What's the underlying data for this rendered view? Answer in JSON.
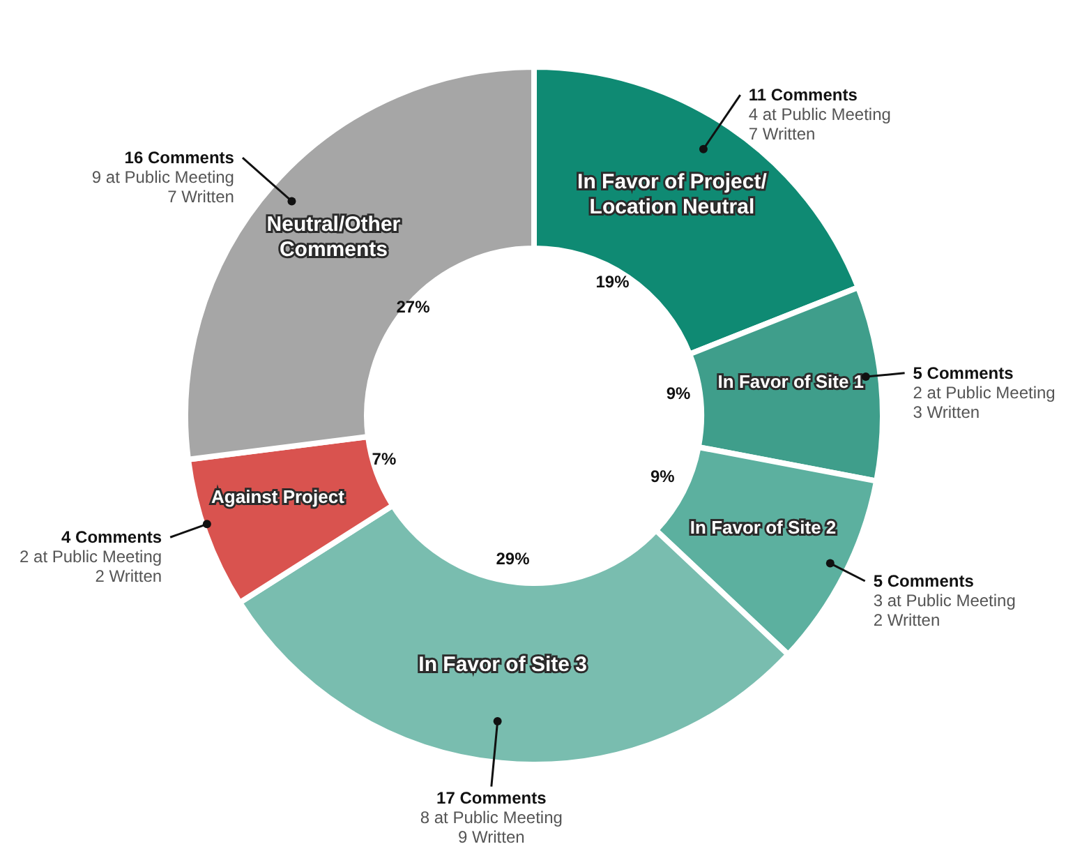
{
  "chart_data": {
    "type": "donut",
    "categories": [
      "In Favor of Project/ Location Neutral",
      "In Favor of Site 1",
      "In Favor of Site 2",
      "In Favor of Site 3",
      "Against Project",
      "Neutral/Other Comments"
    ],
    "values": [
      19,
      9,
      9,
      29,
      7,
      27
    ],
    "colors": [
      "#0f8a73",
      "#3f9e8b",
      "#5cb09f",
      "#79bdaf",
      "#d9534f",
      "#a6a6a6"
    ],
    "value_labels": [
      "19%",
      "9%",
      "9%",
      "29%",
      "7%",
      "27%"
    ],
    "annotations": [
      {
        "text": "11 Comments\n4 at Public Meeting\n7 Written",
        "x": "In Favor of Project/ Location Neutral"
      },
      {
        "text": "5 Comments\n2 at Public Meeting\n3 Written",
        "x": "In Favor of Site 1"
      },
      {
        "text": "5 Comments\n3 at Public Meeting\n2 Written",
        "x": "In Favor of Site 2"
      },
      {
        "text": "17 Comments\n8 at Public Meeting\n9 Written",
        "x": "In Favor of Site 3"
      },
      {
        "text": "4 Comments\n2 at Public Meeting\n2 Written",
        "x": "Against Project"
      },
      {
        "text": "16 Comments\n9 at Public Meeting\n7 Written",
        "x": "Neutral/Other Comments"
      }
    ],
    "legend": false
  }
}
